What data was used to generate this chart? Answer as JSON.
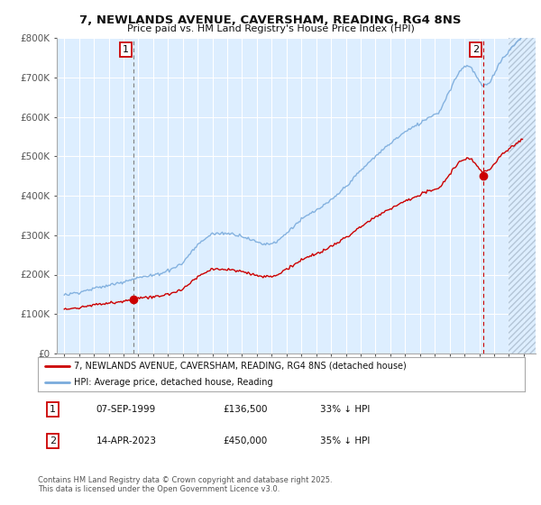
{
  "title": "7, NEWLANDS AVENUE, CAVERSHAM, READING, RG4 8NS",
  "subtitle": "Price paid vs. HM Land Registry's House Price Index (HPI)",
  "legend_line1": "7, NEWLANDS AVENUE, CAVERSHAM, READING, RG4 8NS (detached house)",
  "legend_line2": "HPI: Average price, detached house, Reading",
  "transaction1_date": "07-SEP-1999",
  "transaction1_price": "£136,500",
  "transaction1_note": "33% ↓ HPI",
  "transaction2_date": "14-APR-2023",
  "transaction2_price": "£450,000",
  "transaction2_note": "35% ↓ HPI",
  "footer": "Contains HM Land Registry data © Crown copyright and database right 2025.\nThis data is licensed under the Open Government Licence v3.0.",
  "red_color": "#cc0000",
  "blue_color": "#7aabdc",
  "bg_color": "#ddeeff",
  "grid_color": "#ffffff",
  "hatch_bg": "#c8d8e8",
  "ylim": [
    0,
    800000
  ],
  "yticks": [
    0,
    100000,
    200000,
    300000,
    400000,
    500000,
    600000,
    700000,
    800000
  ],
  "ytick_labels": [
    "£0",
    "£100K",
    "£200K",
    "£300K",
    "£400K",
    "£500K",
    "£600K",
    "£700K",
    "£800K"
  ],
  "xlim_start": 1994.5,
  "xlim_end": 2026.8,
  "t1_year": 1999.667,
  "t1_price": 136500,
  "t2_year": 2023.25,
  "t2_price": 450000,
  "hatch_start": 2025.0
}
